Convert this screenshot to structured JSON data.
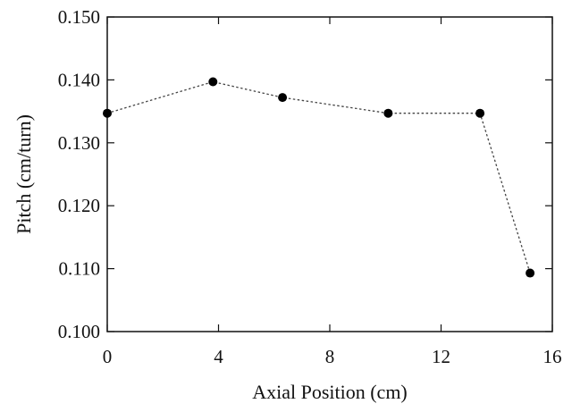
{
  "chart_data": {
    "type": "scatter",
    "title": "",
    "xlabel": "Axial Position (cm)",
    "ylabel": "Pitch (cm/turn)",
    "xlim": [
      0,
      16
    ],
    "ylim": [
      0.1,
      0.15
    ],
    "x_ticks": [
      "0",
      "4",
      "8",
      "12",
      "16"
    ],
    "y_ticks": [
      "0.100",
      "0.110",
      "0.120",
      "0.130",
      "0.140",
      "0.150"
    ],
    "grid": false,
    "line_style": "dotted",
    "marker": "filled-circle",
    "series": [
      {
        "x": [
          0,
          3.8,
          6.3,
          10.1,
          13.4,
          15.2
        ],
        "y": [
          0.1347,
          0.1397,
          0.1372,
          0.1347,
          0.1347,
          0.1093
        ]
      }
    ]
  }
}
